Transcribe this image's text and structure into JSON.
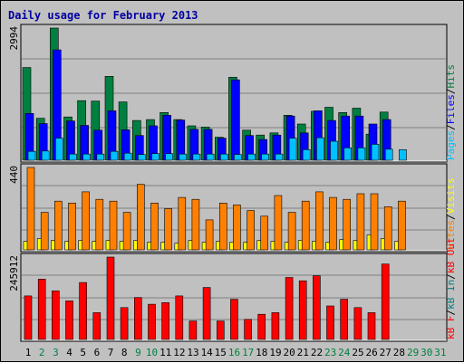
{
  "title": "Daily usage for February 2013",
  "colors": {
    "background": "#c0c0c0",
    "plot": "#c0c0c0",
    "title": "#0000a0",
    "hits": "#008040",
    "files": "#0000ff",
    "pages": "#00c0ff",
    "visits": "#ffff00",
    "sites": "#ff8000",
    "kbin": "#008080",
    "kbout": "#ff0000",
    "grid": "#808080",
    "weekend_label": "#008040",
    "weekday_label": "#000000"
  },
  "chart_data": [
    {
      "type": "bar",
      "panel": "hits-files-pages",
      "ymax_label": "2994",
      "ylim": [
        0,
        2994
      ],
      "grid": true,
      "categories": [
        "1",
        "2",
        "3",
        "4",
        "5",
        "6",
        "7",
        "8",
        "9",
        "10",
        "11",
        "12",
        "13",
        "14",
        "15",
        "16",
        "17",
        "18",
        "19",
        "20",
        "21",
        "22",
        "23",
        "24",
        "25",
        "26",
        "27",
        "28",
        "29",
        "30",
        "31"
      ],
      "weekend": [
        false,
        true,
        true,
        false,
        false,
        false,
        false,
        false,
        true,
        true,
        false,
        false,
        false,
        false,
        false,
        true,
        true,
        false,
        false,
        false,
        false,
        false,
        true,
        true,
        false,
        false,
        false,
        false,
        true,
        true,
        true
      ],
      "legend": [
        {
          "label": "Pages",
          "key": "pages"
        },
        {
          "label": "Files",
          "key": "files"
        },
        {
          "label": "Hits",
          "key": "hits"
        }
      ],
      "series": [
        {
          "name": "Hits",
          "key": "hits",
          "values": [
            2100,
            950,
            2994,
            980,
            1350,
            1340,
            1900,
            1320,
            900,
            920,
            1080,
            920,
            780,
            750,
            520,
            1880,
            680,
            570,
            620,
            1020,
            820,
            1110,
            1200,
            1080,
            1180,
            590,
            1090,
            null,
            null,
            null,
            null
          ]
        },
        {
          "name": "Files",
          "key": "files",
          "values": [
            1060,
            830,
            2500,
            890,
            790,
            680,
            1120,
            690,
            560,
            780,
            1020,
            910,
            700,
            700,
            500,
            1820,
            560,
            470,
            570,
            1000,
            620,
            1120,
            900,
            1000,
            1000,
            820,
            920,
            null,
            null,
            null,
            null
          ]
        },
        {
          "name": "Pages",
          "key": "pages",
          "values": [
            200,
            210,
            500,
            140,
            140,
            140,
            200,
            160,
            130,
            150,
            150,
            140,
            140,
            140,
            140,
            130,
            140,
            140,
            140,
            500,
            240,
            510,
            430,
            280,
            280,
            360,
            250,
            240,
            null,
            null,
            null
          ]
        }
      ]
    },
    {
      "type": "bar",
      "panel": "visits-sites",
      "ymax_label": "440",
      "ylim": [
        0,
        440
      ],
      "grid": true,
      "legend": [
        {
          "label": "Sites",
          "key": "sites"
        },
        {
          "label": "Visits",
          "key": "visits"
        }
      ],
      "series": [
        {
          "name": "Sites",
          "key": "sites",
          "values": [
            440,
            200,
            260,
            250,
            310,
            270,
            260,
            200,
            350,
            250,
            220,
            280,
            270,
            160,
            250,
            240,
            210,
            180,
            290,
            200,
            260,
            310,
            280,
            270,
            300,
            300,
            230,
            260,
            null,
            null,
            null
          ]
        },
        {
          "name": "Visits",
          "key": "visits",
          "values": [
            45,
            60,
            50,
            45,
            50,
            45,
            50,
            45,
            50,
            40,
            40,
            35,
            50,
            40,
            45,
            40,
            40,
            50,
            45,
            40,
            50,
            45,
            40,
            55,
            50,
            80,
            60,
            45,
            null,
            null,
            null
          ]
        }
      ]
    },
    {
      "type": "bar",
      "panel": "kbin-kbout",
      "ymax_label": "245912",
      "ylim": [
        0,
        245912
      ],
      "grid": true,
      "legend": [
        {
          "label": "kB F",
          "key": "kbout"
        },
        {
          "label": "kB In",
          "key": "kbin"
        },
        {
          "label": "kB Out",
          "key": "kbout"
        }
      ],
      "series": [
        {
          "name": "kB Out",
          "key": "kbout",
          "values": [
            130000,
            180000,
            145000,
            115000,
            170000,
            80000,
            245912,
            95000,
            125000,
            105000,
            110000,
            130000,
            55000,
            155000,
            55000,
            120000,
            60000,
            75000,
            80000,
            185000,
            175000,
            190000,
            100000,
            120000,
            95000,
            80000,
            225000,
            null,
            null,
            null,
            null
          ]
        }
      ]
    }
  ]
}
